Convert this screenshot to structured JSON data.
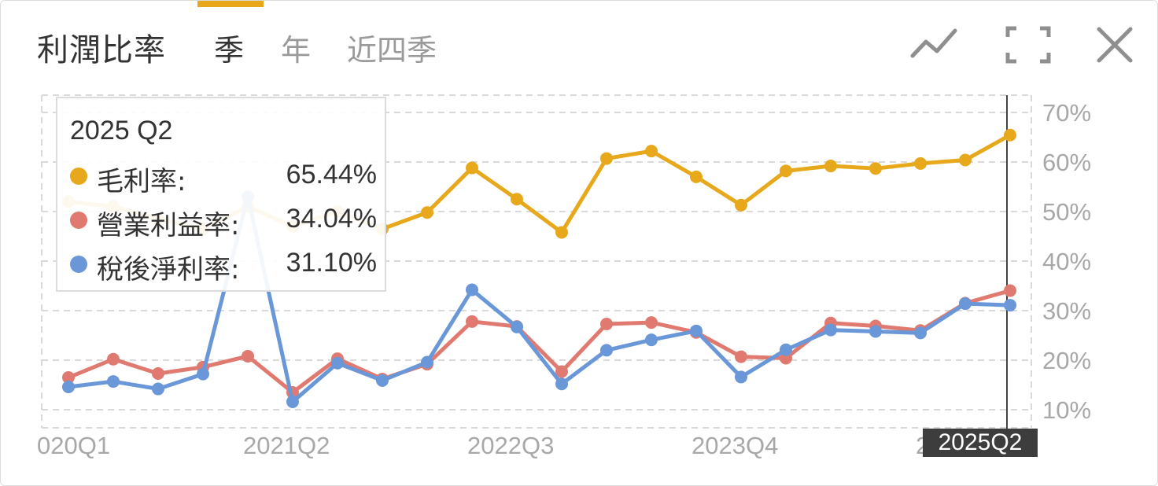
{
  "header": {
    "title": "利潤比率",
    "tabs": [
      {
        "label": "季",
        "active": true
      },
      {
        "label": "年",
        "active": false
      },
      {
        "label": "近四季",
        "active": false
      }
    ],
    "tools": [
      "line-chart-icon",
      "fullscreen-icon",
      "close-icon"
    ]
  },
  "colors": {
    "gross": "#e7a81c",
    "operating": "#e07a70",
    "net": "#6a97d8",
    "accent": "#e7a81c"
  },
  "tooltip": {
    "title": "2025 Q2",
    "rows": [
      {
        "name": "毛利率:",
        "value": "65.44%"
      },
      {
        "name": "營業利益率:",
        "value": "34.04%"
      },
      {
        "name": "稅後淨利率:",
        "value": "31.10%"
      }
    ]
  },
  "x_highlight": "2025Q2",
  "chart_data": {
    "type": "line",
    "x": [
      "2020Q1",
      "2020Q2",
      "2020Q3",
      "2020Q4",
      "2021Q1",
      "2021Q2",
      "2021Q3",
      "2021Q4",
      "2022Q1",
      "2022Q2",
      "2022Q3",
      "2022Q4",
      "2023Q1",
      "2023Q2",
      "2023Q3",
      "2023Q4",
      "2024Q1",
      "2024Q2",
      "2024Q3",
      "2024Q4",
      "2025Q1",
      "2025Q2"
    ],
    "x_tick_labels": [
      "020Q1",
      "2021Q2",
      "2022Q3",
      "2023Q4",
      "2025Q2"
    ],
    "y_tick_labels": [
      "10%",
      "20%",
      "30%",
      "40%",
      "50%",
      "60%",
      "70%"
    ],
    "ylim": [
      8,
      71
    ],
    "grid": true,
    "series": [
      {
        "name": "毛利率",
        "values": [
          52,
          51,
          48.5,
          46.5,
          51,
          47,
          50,
          46.5,
          49.8,
          58.8,
          52.5,
          45.8,
          60.7,
          62.2,
          57,
          51.3,
          58.2,
          59.2,
          58.7,
          59.7,
          60.4,
          65.44
        ]
      },
      {
        "name": "營業利益率",
        "values": [
          16.5,
          20.2,
          17.3,
          18.6,
          20.8,
          13.5,
          20.3,
          16.2,
          19.2,
          27.8,
          26.8,
          17.7,
          27.3,
          27.6,
          25.6,
          20.7,
          20.4,
          27.5,
          26.9,
          26,
          31.5,
          34.04
        ]
      },
      {
        "name": "稅後淨利率",
        "values": [
          14.6,
          15.7,
          14.2,
          17.2,
          53,
          11.6,
          19.4,
          15.9,
          19.6,
          34.2,
          26.7,
          15.2,
          22,
          24.1,
          25.9,
          16.6,
          22.1,
          26.1,
          25.8,
          25.5,
          31.4,
          31.1
        ]
      }
    ]
  }
}
